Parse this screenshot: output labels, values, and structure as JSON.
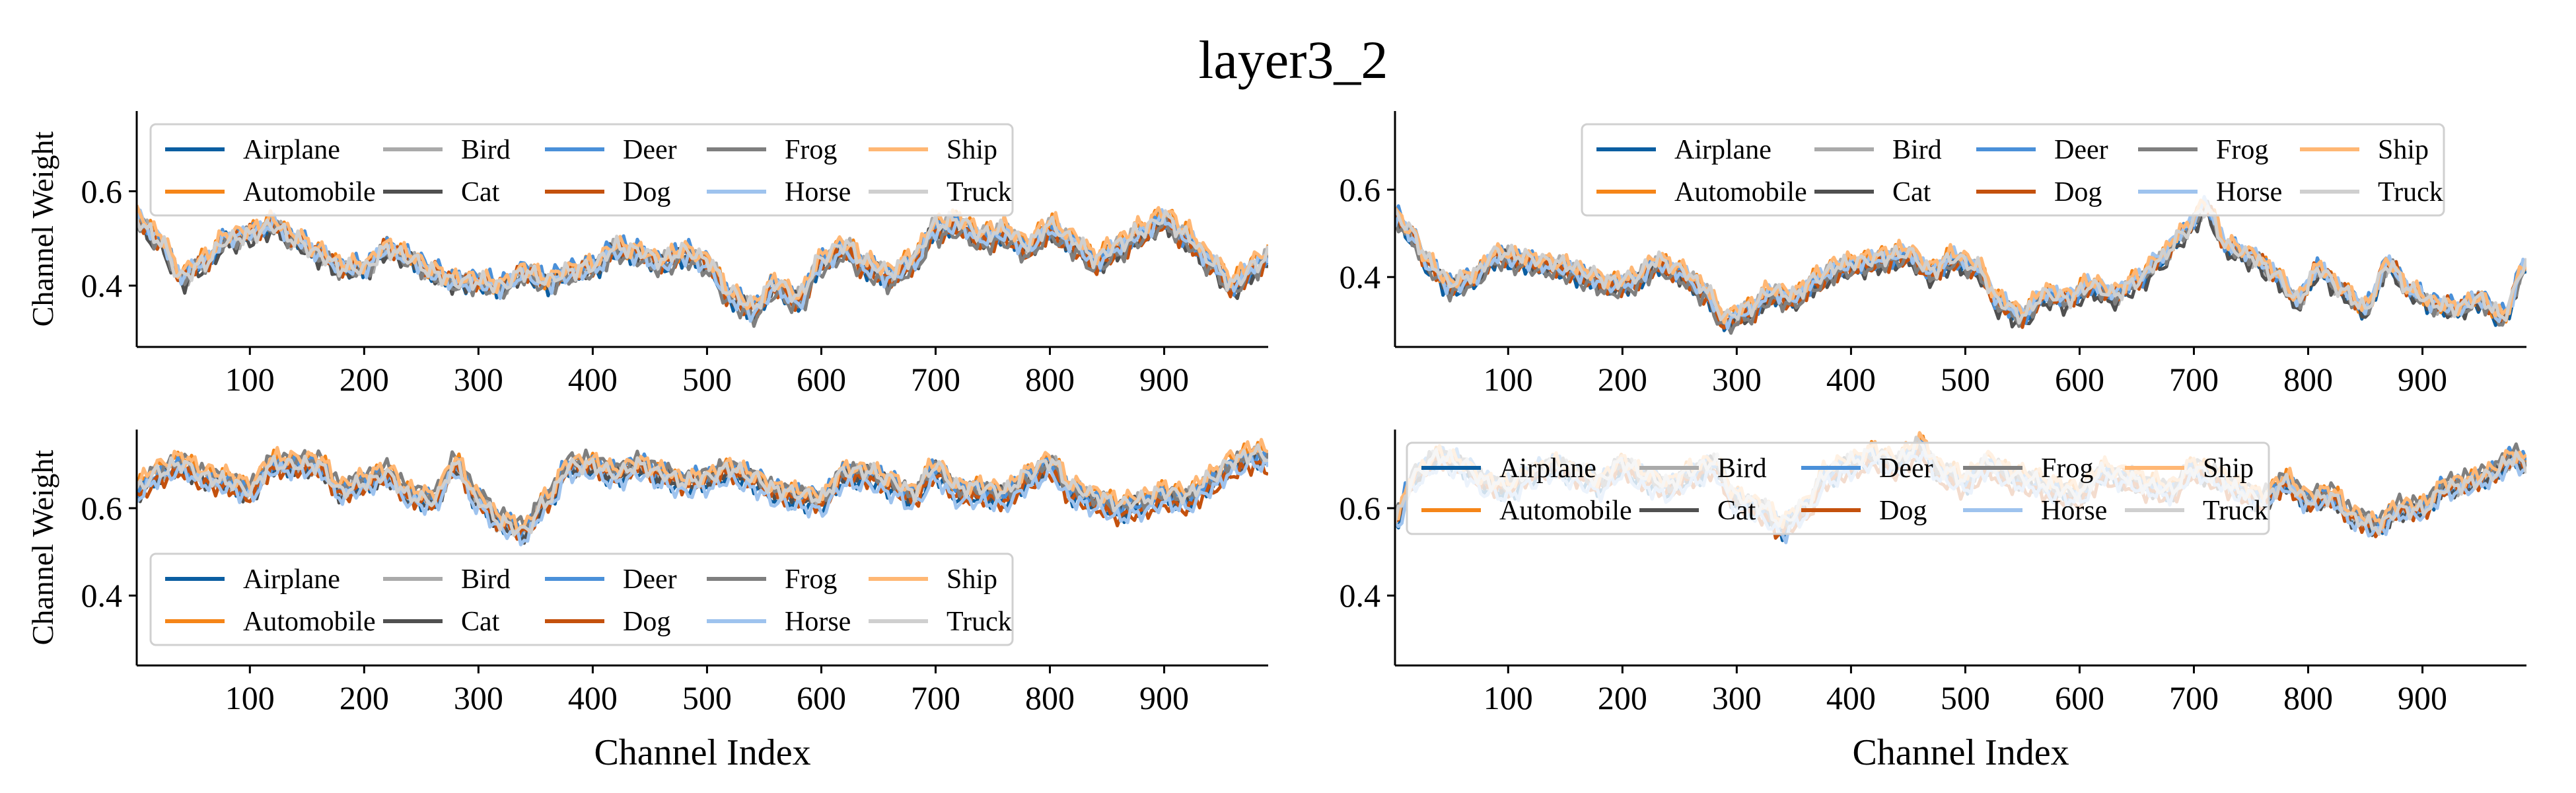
{
  "figure": {
    "title": "layer3_2",
    "ylabel": "Channel Weight",
    "xlabel": "Channel Index"
  },
  "chart_data": [
    {
      "type": "line",
      "position": "top-left",
      "xlim": [
        1,
        991
      ],
      "ylim": [
        0.27,
        0.77
      ],
      "xticks": [
        100,
        200,
        300,
        400,
        500,
        600,
        700,
        800,
        900
      ],
      "yticks": [
        0.4,
        0.6
      ],
      "ylabel": "Channel Weight",
      "xlabel": "",
      "legend": "top",
      "grid": false,
      "anchors": [
        [
          1,
          0.54
        ],
        [
          20,
          0.5
        ],
        [
          40,
          0.42
        ],
        [
          60,
          0.45
        ],
        [
          80,
          0.5
        ],
        [
          100,
          0.51
        ],
        [
          120,
          0.53
        ],
        [
          140,
          0.5
        ],
        [
          160,
          0.47
        ],
        [
          180,
          0.44
        ],
        [
          200,
          0.44
        ],
        [
          220,
          0.48
        ],
        [
          240,
          0.46
        ],
        [
          260,
          0.43
        ],
        [
          280,
          0.41
        ],
        [
          300,
          0.41
        ],
        [
          320,
          0.4
        ],
        [
          340,
          0.43
        ],
        [
          360,
          0.41
        ],
        [
          380,
          0.43
        ],
        [
          400,
          0.44
        ],
        [
          420,
          0.48
        ],
        [
          440,
          0.47
        ],
        [
          460,
          0.45
        ],
        [
          480,
          0.47
        ],
        [
          500,
          0.45
        ],
        [
          520,
          0.38
        ],
        [
          540,
          0.35
        ],
        [
          560,
          0.4
        ],
        [
          580,
          0.37
        ],
        [
          600,
          0.45
        ],
        [
          620,
          0.48
        ],
        [
          640,
          0.44
        ],
        [
          660,
          0.42
        ],
        [
          680,
          0.45
        ],
        [
          700,
          0.52
        ],
        [
          720,
          0.53
        ],
        [
          740,
          0.5
        ],
        [
          760,
          0.51
        ],
        [
          780,
          0.48
        ],
        [
          800,
          0.52
        ],
        [
          820,
          0.49
        ],
        [
          840,
          0.45
        ],
        [
          860,
          0.48
        ],
        [
          880,
          0.51
        ],
        [
          900,
          0.54
        ],
        [
          920,
          0.5
        ],
        [
          940,
          0.45
        ],
        [
          960,
          0.4
        ],
        [
          980,
          0.44
        ],
        [
          991,
          0.46
        ]
      ],
      "series": [
        {
          "name": "Airplane",
          "offset": -0.005,
          "color": "#0b5ea1"
        },
        {
          "name": "Automobile",
          "offset": 0.008,
          "color": "#f58518"
        },
        {
          "name": "Bird",
          "offset": 0.0,
          "color": "#aaaaaa"
        },
        {
          "name": "Cat",
          "offset": -0.01,
          "color": "#505050"
        },
        {
          "name": "Deer",
          "offset": 0.004,
          "color": "#4a90d9"
        },
        {
          "name": "Dog",
          "offset": -0.006,
          "color": "#c4510d"
        },
        {
          "name": "Frog",
          "offset": -0.012,
          "color": "#7f7f7f"
        },
        {
          "name": "Horse",
          "offset": -0.002,
          "color": "#9ec3ee"
        },
        {
          "name": "Ship",
          "offset": 0.012,
          "color": "#ffb774"
        },
        {
          "name": "Truck",
          "offset": 0.003,
          "color": "#cfcfcf"
        }
      ]
    },
    {
      "type": "line",
      "position": "top-right",
      "xlim": [
        1,
        991
      ],
      "ylim": [
        0.24,
        0.78
      ],
      "xticks": [
        100,
        200,
        300,
        400,
        500,
        600,
        700,
        800,
        900
      ],
      "yticks": [
        0.4,
        0.6
      ],
      "ylabel": "",
      "xlabel": "",
      "legend": "top-right",
      "grid": false,
      "anchors": [
        [
          1,
          0.54
        ],
        [
          15,
          0.5
        ],
        [
          30,
          0.43
        ],
        [
          50,
          0.38
        ],
        [
          70,
          0.4
        ],
        [
          90,
          0.45
        ],
        [
          110,
          0.44
        ],
        [
          130,
          0.43
        ],
        [
          150,
          0.42
        ],
        [
          170,
          0.4
        ],
        [
          190,
          0.38
        ],
        [
          210,
          0.39
        ],
        [
          230,
          0.43
        ],
        [
          250,
          0.41
        ],
        [
          270,
          0.37
        ],
        [
          290,
          0.3
        ],
        [
          310,
          0.32
        ],
        [
          330,
          0.36
        ],
        [
          350,
          0.35
        ],
        [
          370,
          0.39
        ],
        [
          390,
          0.42
        ],
        [
          410,
          0.43
        ],
        [
          430,
          0.44
        ],
        [
          450,
          0.45
        ],
        [
          470,
          0.41
        ],
        [
          490,
          0.44
        ],
        [
          510,
          0.42
        ],
        [
          530,
          0.34
        ],
        [
          550,
          0.31
        ],
        [
          570,
          0.36
        ],
        [
          590,
          0.35
        ],
        [
          610,
          0.38
        ],
        [
          630,
          0.36
        ],
        [
          650,
          0.39
        ],
        [
          670,
          0.44
        ],
        [
          690,
          0.5
        ],
        [
          710,
          0.56
        ],
        [
          730,
          0.47
        ],
        [
          750,
          0.45
        ],
        [
          770,
          0.41
        ],
        [
          790,
          0.35
        ],
        [
          810,
          0.42
        ],
        [
          830,
          0.37
        ],
        [
          850,
          0.33
        ],
        [
          870,
          0.43
        ],
        [
          890,
          0.37
        ],
        [
          910,
          0.34
        ],
        [
          930,
          0.33
        ],
        [
          950,
          0.35
        ],
        [
          970,
          0.31
        ],
        [
          991,
          0.43
        ]
      ],
      "series": [
        {
          "name": "Airplane",
          "offset": -0.008,
          "color": "#0b5ea1"
        },
        {
          "name": "Automobile",
          "offset": 0.006,
          "color": "#f58518"
        },
        {
          "name": "Bird",
          "offset": 0.0,
          "color": "#aaaaaa"
        },
        {
          "name": "Cat",
          "offset": -0.012,
          "color": "#505050"
        },
        {
          "name": "Deer",
          "offset": 0.003,
          "color": "#4a90d9"
        },
        {
          "name": "Dog",
          "offset": -0.004,
          "color": "#c4510d"
        },
        {
          "name": "Frog",
          "offset": -0.01,
          "color": "#7f7f7f"
        },
        {
          "name": "Horse",
          "offset": 0.002,
          "color": "#9ec3ee"
        },
        {
          "name": "Ship",
          "offset": 0.01,
          "color": "#ffb774"
        },
        {
          "name": "Truck",
          "offset": 0.004,
          "color": "#cfcfcf"
        }
      ]
    },
    {
      "type": "line",
      "position": "bottom-left",
      "xlim": [
        1,
        991
      ],
      "ylim": [
        0.24,
        0.78
      ],
      "xticks": [
        100,
        200,
        300,
        400,
        500,
        600,
        700,
        800,
        900
      ],
      "yticks": [
        0.4,
        0.6
      ],
      "ylabel": "Channel Weight",
      "xlabel": "Channel Index",
      "legend": "bottom",
      "grid": false,
      "anchors": [
        [
          1,
          0.64
        ],
        [
          20,
          0.68
        ],
        [
          40,
          0.7
        ],
        [
          60,
          0.67
        ],
        [
          80,
          0.66
        ],
        [
          100,
          0.64
        ],
        [
          120,
          0.7
        ],
        [
          140,
          0.7
        ],
        [
          160,
          0.7
        ],
        [
          180,
          0.64
        ],
        [
          200,
          0.66
        ],
        [
          220,
          0.68
        ],
        [
          240,
          0.63
        ],
        [
          260,
          0.62
        ],
        [
          280,
          0.7
        ],
        [
          300,
          0.62
        ],
        [
          320,
          0.57
        ],
        [
          340,
          0.55
        ],
        [
          360,
          0.62
        ],
        [
          380,
          0.7
        ],
        [
          400,
          0.7
        ],
        [
          420,
          0.68
        ],
        [
          440,
          0.7
        ],
        [
          460,
          0.68
        ],
        [
          480,
          0.66
        ],
        [
          500,
          0.67
        ],
        [
          520,
          0.69
        ],
        [
          540,
          0.67
        ],
        [
          560,
          0.64
        ],
        [
          580,
          0.63
        ],
        [
          600,
          0.62
        ],
        [
          620,
          0.68
        ],
        [
          640,
          0.68
        ],
        [
          660,
          0.66
        ],
        [
          680,
          0.63
        ],
        [
          700,
          0.69
        ],
        [
          720,
          0.64
        ],
        [
          740,
          0.64
        ],
        [
          760,
          0.63
        ],
        [
          780,
          0.67
        ],
        [
          800,
          0.7
        ],
        [
          820,
          0.64
        ],
        [
          840,
          0.62
        ],
        [
          860,
          0.6
        ],
        [
          880,
          0.61
        ],
        [
          900,
          0.63
        ],
        [
          920,
          0.62
        ],
        [
          940,
          0.66
        ],
        [
          960,
          0.7
        ],
        [
          980,
          0.72
        ],
        [
          991,
          0.71
        ]
      ],
      "series": [
        {
          "name": "Airplane",
          "offset": -0.012,
          "color": "#0b5ea1"
        },
        {
          "name": "Automobile",
          "offset": 0.01,
          "color": "#f58518"
        },
        {
          "name": "Bird",
          "offset": 0.0,
          "color": "#aaaaaa"
        },
        {
          "name": "Cat",
          "offset": -0.006,
          "color": "#505050"
        },
        {
          "name": "Deer",
          "offset": 0.004,
          "color": "#4a90d9"
        },
        {
          "name": "Dog",
          "offset": -0.015,
          "color": "#c4510d"
        },
        {
          "name": "Frog",
          "offset": 0.008,
          "color": "#7f7f7f"
        },
        {
          "name": "Horse",
          "offset": -0.02,
          "color": "#9ec3ee"
        },
        {
          "name": "Ship",
          "offset": 0.015,
          "color": "#ffb774"
        },
        {
          "name": "Truck",
          "offset": 0.003,
          "color": "#cfcfcf"
        }
      ]
    },
    {
      "type": "line",
      "position": "bottom-right",
      "xlim": [
        1,
        991
      ],
      "ylim": [
        0.24,
        0.78
      ],
      "xticks": [
        100,
        200,
        300,
        400,
        500,
        600,
        700,
        800,
        900
      ],
      "yticks": [
        0.4,
        0.6
      ],
      "ylabel": "",
      "xlabel": "Channel Index",
      "legend": "top-left",
      "grid": false,
      "anchors": [
        [
          1,
          0.58
        ],
        [
          20,
          0.68
        ],
        [
          40,
          0.72
        ],
        [
          60,
          0.7
        ],
        [
          80,
          0.66
        ],
        [
          100,
          0.65
        ],
        [
          120,
          0.68
        ],
        [
          140,
          0.7
        ],
        [
          160,
          0.68
        ],
        [
          180,
          0.66
        ],
        [
          200,
          0.7
        ],
        [
          220,
          0.67
        ],
        [
          240,
          0.65
        ],
        [
          260,
          0.68
        ],
        [
          280,
          0.7
        ],
        [
          300,
          0.62
        ],
        [
          320,
          0.6
        ],
        [
          340,
          0.56
        ],
        [
          360,
          0.6
        ],
        [
          380,
          0.68
        ],
        [
          400,
          0.7
        ],
        [
          420,
          0.72
        ],
        [
          440,
          0.7
        ],
        [
          460,
          0.74
        ],
        [
          480,
          0.68
        ],
        [
          500,
          0.66
        ],
        [
          520,
          0.7
        ],
        [
          540,
          0.67
        ],
        [
          560,
          0.66
        ],
        [
          580,
          0.64
        ],
        [
          600,
          0.63
        ],
        [
          620,
          0.68
        ],
        [
          640,
          0.67
        ],
        [
          660,
          0.65
        ],
        [
          680,
          0.64
        ],
        [
          700,
          0.69
        ],
        [
          720,
          0.67
        ],
        [
          740,
          0.64
        ],
        [
          760,
          0.62
        ],
        [
          780,
          0.66
        ],
        [
          800,
          0.62
        ],
        [
          820,
          0.63
        ],
        [
          840,
          0.58
        ],
        [
          860,
          0.56
        ],
        [
          880,
          0.6
        ],
        [
          900,
          0.6
        ],
        [
          920,
          0.65
        ],
        [
          940,
          0.66
        ],
        [
          960,
          0.68
        ],
        [
          980,
          0.72
        ],
        [
          991,
          0.7
        ]
      ],
      "series": [
        {
          "name": "Airplane",
          "offset": -0.01,
          "color": "#0b5ea1"
        },
        {
          "name": "Automobile",
          "offset": 0.008,
          "color": "#f58518"
        },
        {
          "name": "Bird",
          "offset": 0.0,
          "color": "#aaaaaa"
        },
        {
          "name": "Cat",
          "offset": -0.005,
          "color": "#505050"
        },
        {
          "name": "Deer",
          "offset": 0.005,
          "color": "#4a90d9"
        },
        {
          "name": "Dog",
          "offset": -0.014,
          "color": "#c4510d"
        },
        {
          "name": "Frog",
          "offset": 0.006,
          "color": "#7f7f7f"
        },
        {
          "name": "Horse",
          "offset": -0.018,
          "color": "#9ec3ee"
        },
        {
          "name": "Ship",
          "offset": 0.012,
          "color": "#ffb774"
        },
        {
          "name": "Truck",
          "offset": 0.002,
          "color": "#cfcfcf"
        }
      ]
    }
  ]
}
